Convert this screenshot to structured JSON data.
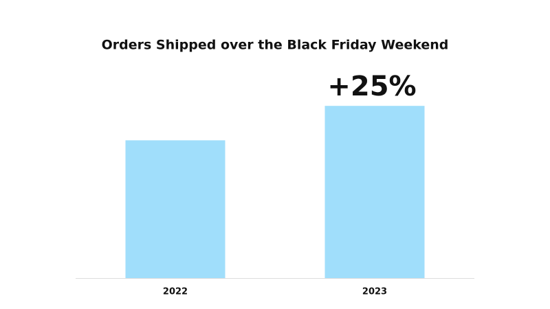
{
  "chart_data": {
    "type": "bar",
    "title": "Orders Shipped over the Black Friday Weekend",
    "categories": [
      "2022",
      "2023"
    ],
    "values": [
      100,
      125
    ],
    "color": "#a0defb",
    "ylim": [
      0,
      150
    ],
    "annotation": "+25%"
  }
}
